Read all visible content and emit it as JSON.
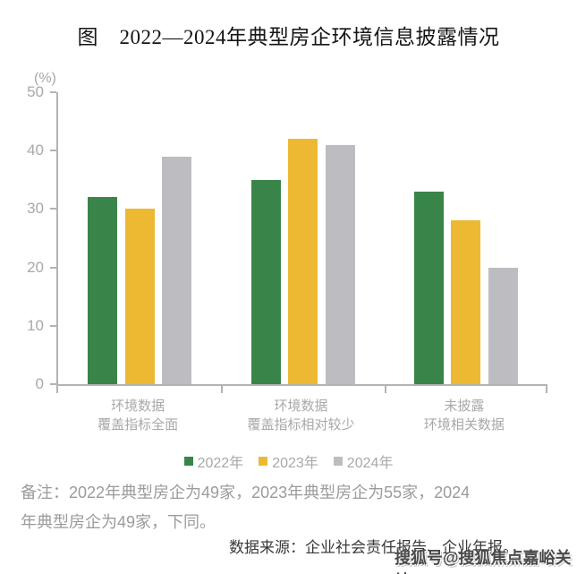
{
  "chart_data": {
    "type": "bar",
    "title": "图　2022—2024年典型房企环境信息披露情况",
    "unit_label": "(%)",
    "categories": [
      {
        "lines": [
          "环境数据",
          "覆盖指标全面"
        ]
      },
      {
        "lines": [
          "环境数据",
          "覆盖指标相对较少"
        ]
      },
      {
        "lines": [
          "未披露",
          "环境相关数据"
        ]
      }
    ],
    "series": [
      {
        "name": "2022年",
        "color": "#398549",
        "values": [
          32,
          35,
          33
        ]
      },
      {
        "name": "2023年",
        "color": "#EDB933",
        "values": [
          30,
          42,
          28
        ]
      },
      {
        "name": "2024年",
        "color": "#BDBDC1",
        "values": [
          39,
          41,
          20
        ]
      }
    ],
    "ylim": [
      0,
      50
    ],
    "yticks": [
      0,
      10,
      20,
      30,
      40,
      50
    ],
    "legend_position": "bottom",
    "grid": false
  },
  "notes": {
    "line1": "备注：2022年典型房企为49家，2023年典型房企为55家，2024",
    "line2": "年典型房企为49家，下同。"
  },
  "source": "数据来源：企业社会责任报告、企业年报。",
  "watermark": "搜狐号@搜狐焦点嘉峪关站",
  "colors": {
    "axis": "#b3b3b3",
    "tick_text": "#A8A8A8",
    "note_text": "#9B9B9B",
    "source_text": "#3A3A3A",
    "title_text": "#151515"
  }
}
